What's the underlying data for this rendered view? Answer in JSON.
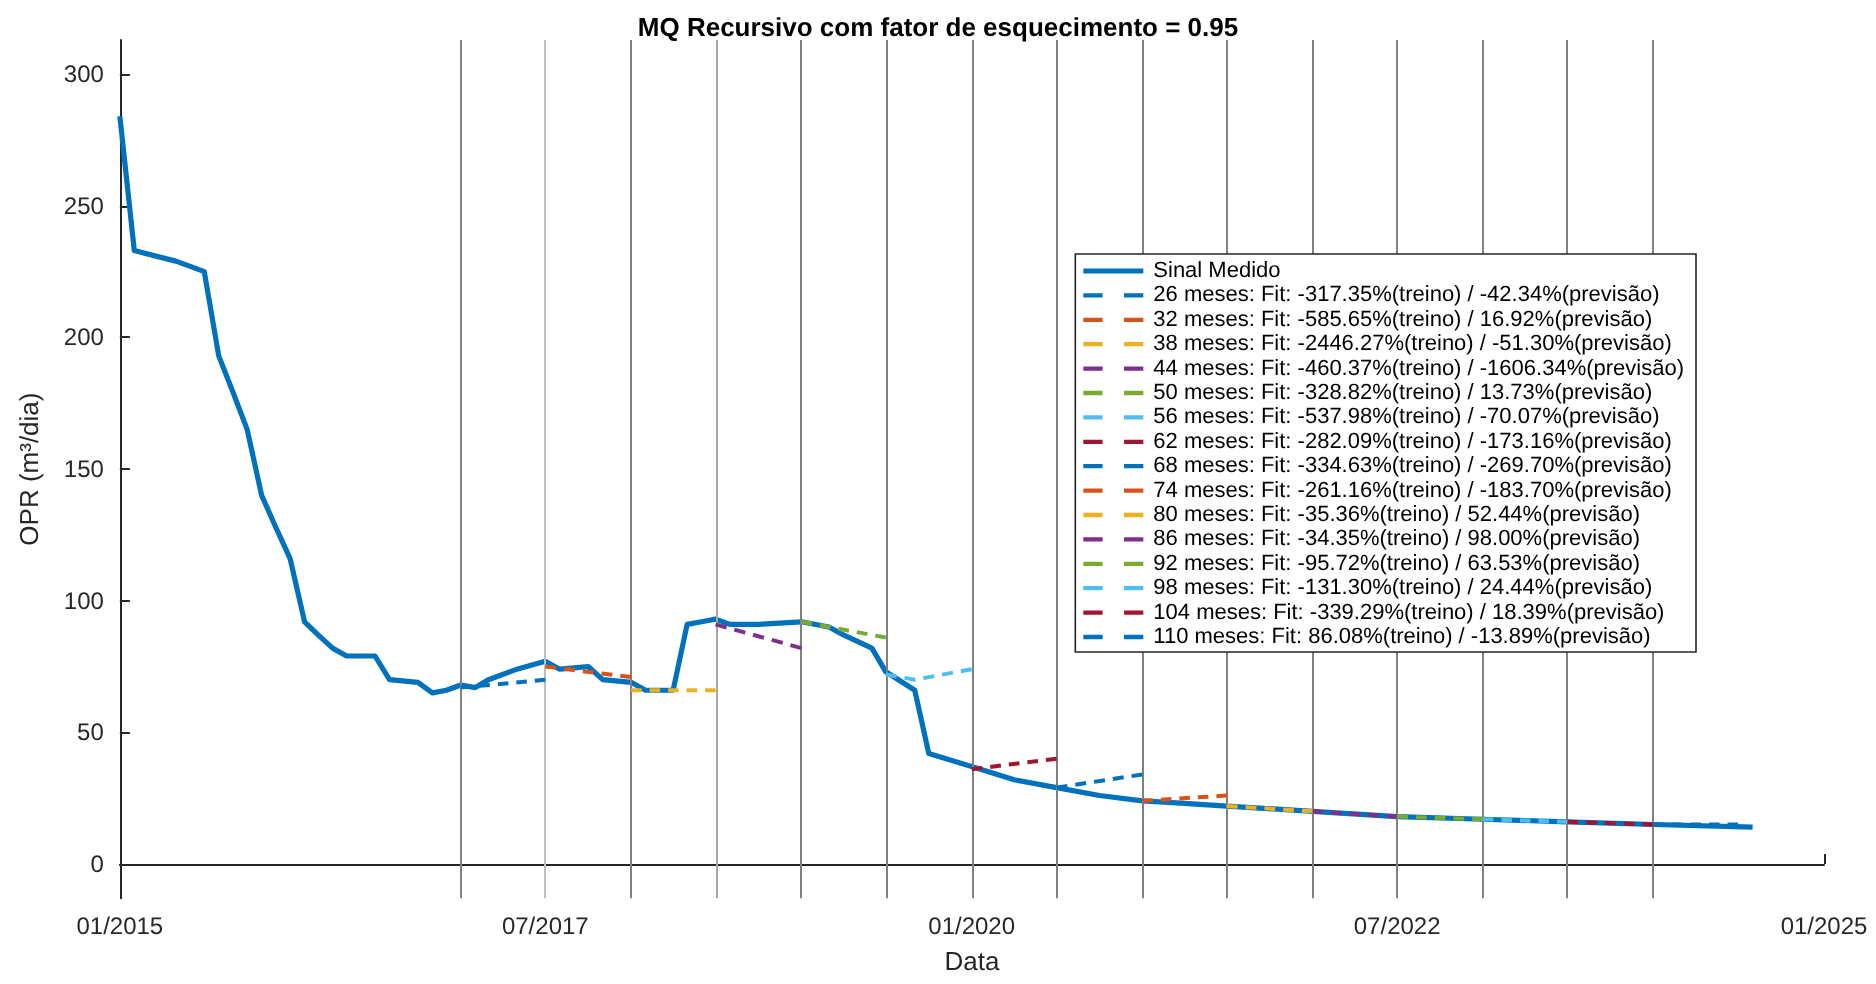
{
  "chart_data": {
    "type": "line",
    "title": "MQ Recursivo com fator de esquecimento = 0.95",
    "xlabel": "Data",
    "ylabel": "OPR (m³/dia)",
    "xlim": [
      "2015-01",
      "2025-01"
    ],
    "xticks": [
      {
        "value": "2015-01",
        "label": "01/2015"
      },
      {
        "value": "2017-07",
        "label": "07/2017"
      },
      {
        "value": "2020-01",
        "label": "01/2020"
      },
      {
        "value": "2022-07",
        "label": "07/2022"
      },
      {
        "value": "2025-01",
        "label": "01/2025"
      }
    ],
    "ylim": [
      -13,
      313
    ],
    "yticks": [
      0,
      50,
      100,
      150,
      200,
      250,
      300
    ],
    "grid": false,
    "legend": "top right",
    "marker": "none",
    "ref_lines": [
      {
        "axis": "x",
        "value": "2017-01",
        "color": "#808080"
      },
      {
        "axis": "x",
        "value": "2017-07",
        "color": "#bfbfbf"
      },
      {
        "axis": "x",
        "value": "2018-01",
        "color": "#808080"
      },
      {
        "axis": "x",
        "value": "2018-07",
        "color": "#a6a6a6"
      },
      {
        "axis": "x",
        "value": "2019-01",
        "color": "#808080"
      },
      {
        "axis": "x",
        "value": "2019-07",
        "color": "#808080"
      },
      {
        "axis": "x",
        "value": "2020-01",
        "color": "#808080"
      },
      {
        "axis": "x",
        "value": "2020-07",
        "color": "#808080"
      },
      {
        "axis": "x",
        "value": "2021-01",
        "color": "#808080"
      },
      {
        "axis": "x",
        "value": "2021-07",
        "color": "#808080"
      },
      {
        "axis": "x",
        "value": "2022-01",
        "color": "#808080"
      },
      {
        "axis": "x",
        "value": "2022-07",
        "color": "#808080"
      },
      {
        "axis": "x",
        "value": "2023-01",
        "color": "#808080"
      },
      {
        "axis": "x",
        "value": "2023-07",
        "color": "#808080"
      },
      {
        "axis": "x",
        "value": "2024-01",
        "color": "#808080"
      }
    ],
    "series": [
      {
        "name": "Sinal Medido",
        "color": "#0072bd",
        "line_style": "solid",
        "x": [
          "2015-01",
          "2015-02",
          "2015-05",
          "2015-06",
          "2015-07",
          "2015-08",
          "2015-09",
          "2015-10",
          "2015-11",
          "2015-12",
          "2016-01",
          "2016-02",
          "2016-03",
          "2016-04",
          "2016-05",
          "2016-07",
          "2016-08",
          "2016-10",
          "2016-11",
          "2016-12",
          "2017-01",
          "2017-02",
          "2017-03",
          "2017-05",
          "2017-07",
          "2017-08",
          "2017-10",
          "2017-11",
          "2018-01",
          "2018-02",
          "2018-04",
          "2018-05",
          "2018-06",
          "2018-07",
          "2018-08",
          "2018-10",
          "2019-01",
          "2019-03",
          "2019-04",
          "2019-06",
          "2019-07",
          "2019-09",
          "2019-10",
          "2020-01",
          "2020-04",
          "2020-07",
          "2020-10",
          "2021-01",
          "2021-04",
          "2021-07",
          "2022-01",
          "2022-07",
          "2023-01",
          "2023-07",
          "2024-01",
          "2024-08"
        ],
        "values": [
          284,
          233,
          229,
          227,
          225,
          193,
          179,
          165,
          140,
          128,
          116,
          92,
          87,
          82,
          79,
          79,
          70,
          69,
          65,
          66,
          68,
          67,
          70,
          74,
          77,
          74,
          75,
          70,
          69,
          66,
          66,
          91,
          92,
          93,
          91,
          91,
          92,
          90,
          87,
          82,
          73,
          66,
          42,
          37,
          32,
          29,
          26,
          24,
          23,
          22,
          20,
          18,
          17,
          16,
          15,
          14
        ]
      },
      {
        "name": "26 meses: Fit: -317.35%(treino) / -42.34%(previsão)",
        "color": "#0072bd",
        "line_style": "dashed",
        "x": [
          "2017-01",
          "2017-07"
        ],
        "values": [
          67,
          70
        ]
      },
      {
        "name": "32 meses: Fit: -585.65%(treino) / 16.92%(previsão)",
        "color": "#d95319",
        "line_style": "dashed",
        "x": [
          "2017-07",
          "2018-01"
        ],
        "values": [
          75,
          71
        ]
      },
      {
        "name": "38 meses: Fit: -2446.27%(treino) / -51.30%(previsão)",
        "color": "#edb120",
        "line_style": "dashed",
        "x": [
          "2018-01",
          "2018-07"
        ],
        "values": [
          66,
          66
        ]
      },
      {
        "name": "44 meses: Fit: -460.37%(treino) / -1606.34%(previsão)",
        "color": "#7e2f8e",
        "line_style": "dashed",
        "x": [
          "2018-07",
          "2019-01"
        ],
        "values": [
          91,
          82
        ]
      },
      {
        "name": "50 meses: Fit: -328.82%(treino) / 13.73%(previsão)",
        "color": "#77ac30",
        "line_style": "dashed",
        "x": [
          "2019-01",
          "2019-07"
        ],
        "values": [
          92,
          86
        ]
      },
      {
        "name": "56 meses: Fit: -537.98%(treino) / -70.07%(previsão)",
        "color": "#4dbeee",
        "line_style": "dashed",
        "x": [
          "2019-07",
          "2019-09",
          "2020-01"
        ],
        "values": [
          72,
          70,
          74
        ]
      },
      {
        "name": "62 meses: Fit: -282.09%(treino) / -173.16%(previsão)",
        "color": "#a2142f",
        "line_style": "dashed",
        "x": [
          "2020-01",
          "2020-07"
        ],
        "values": [
          36,
          40
        ]
      },
      {
        "name": "68 meses: Fit: -334.63%(treino) / -269.70%(previsão)",
        "color": "#0072bd",
        "line_style": "dashed",
        "x": [
          "2020-07",
          "2021-01"
        ],
        "values": [
          29,
          34
        ]
      },
      {
        "name": "74 meses: Fit: -261.16%(treino) / -183.70%(previsão)",
        "color": "#d95319",
        "line_style": "dashed",
        "x": [
          "2021-01",
          "2021-07"
        ],
        "values": [
          24,
          26
        ]
      },
      {
        "name": "80 meses: Fit: -35.36%(treino) / 52.44%(previsão)",
        "color": "#edb120",
        "line_style": "dashed",
        "x": [
          "2021-07",
          "2022-01"
        ],
        "values": [
          22,
          20
        ]
      },
      {
        "name": "86 meses: Fit: -34.35%(treino) / 98.00%(previsão)",
        "color": "#7e2f8e",
        "line_style": "dashed",
        "x": [
          "2022-01",
          "2022-07"
        ],
        "values": [
          20,
          18
        ]
      },
      {
        "name": "92 meses: Fit: -95.72%(treino) / 63.53%(previsão)",
        "color": "#77ac30",
        "line_style": "dashed",
        "x": [
          "2022-07",
          "2023-01"
        ],
        "values": [
          18,
          17
        ]
      },
      {
        "name": "98 meses: Fit: -131.30%(treino) / 24.44%(previsão)",
        "color": "#4dbeee",
        "line_style": "dashed",
        "x": [
          "2023-01",
          "2023-07"
        ],
        "values": [
          17,
          16
        ]
      },
      {
        "name": "104 meses: Fit: -339.29%(treino) / 18.39%(previsão)",
        "color": "#a2142f",
        "line_style": "dashed",
        "x": [
          "2023-07",
          "2024-01"
        ],
        "values": [
          16,
          15
        ]
      },
      {
        "name": "110 meses: Fit: 86.08%(treino) / -13.89%(previsão)",
        "color": "#0072bd",
        "line_style": "dashed",
        "x": [
          "2024-01",
          "2024-07"
        ],
        "values": [
          15,
          15
        ]
      }
    ]
  }
}
